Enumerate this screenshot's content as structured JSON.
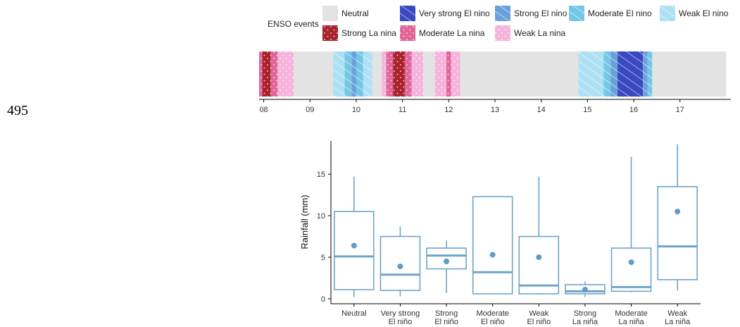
{
  "page_label": "495",
  "colors": {
    "neutral": "#e3e3e3",
    "very_strong_el_nino": "#3a48c2",
    "strong_el_nino": "#6aa1dc",
    "moderate_el_nino": "#74c6e6",
    "weak_el_nino": "#aee0f4",
    "strong_la_nina": "#a8232b",
    "moderate_la_nina": "#e0669a",
    "weak_la_nina": "#f6b4dc",
    "box": "#6ea4c9",
    "mean_dot": "#5f9cc6"
  },
  "chart_data": [
    {
      "type": "timeline",
      "legend_title": "ENSO events",
      "legend": [
        {
          "key": "neutral",
          "label": "Neutral"
        },
        {
          "key": "very_strong_el_nino",
          "label": "Very strong El nino"
        },
        {
          "key": "strong_el_nino",
          "label": "Strong El nino"
        },
        {
          "key": "moderate_el_nino",
          "label": "Moderate El nino"
        },
        {
          "key": "weak_el_nino",
          "label": "Weak El nino"
        },
        {
          "key": "strong_la_nina",
          "label": "Strong La nina"
        },
        {
          "key": "moderate_la_nina",
          "label": "Moderate La nina"
        },
        {
          "key": "weak_la_nina",
          "label": "Weak La nina"
        }
      ],
      "x_ticks": [
        "08",
        "09",
        "10",
        "11",
        "12",
        "13",
        "14",
        "15",
        "16",
        "17"
      ],
      "xlim": [
        2007.9,
        2018.1
      ],
      "segments": [
        {
          "start": 2007.9,
          "end": 2007.97,
          "cat": "moderate_la_nina"
        },
        {
          "start": 2007.97,
          "end": 2008.15,
          "cat": "strong_la_nina"
        },
        {
          "start": 2008.15,
          "end": 2008.3,
          "cat": "moderate_la_nina"
        },
        {
          "start": 2008.3,
          "end": 2008.65,
          "cat": "weak_la_nina"
        },
        {
          "start": 2008.65,
          "end": 2009.5,
          "cat": "neutral"
        },
        {
          "start": 2009.5,
          "end": 2009.75,
          "cat": "weak_el_nino"
        },
        {
          "start": 2009.75,
          "end": 2009.9,
          "cat": "moderate_el_nino"
        },
        {
          "start": 2009.9,
          "end": 2010.0,
          "cat": "strong_el_nino"
        },
        {
          "start": 2010.0,
          "end": 2010.15,
          "cat": "moderate_el_nino"
        },
        {
          "start": 2010.15,
          "end": 2010.35,
          "cat": "weak_el_nino"
        },
        {
          "start": 2010.35,
          "end": 2010.55,
          "cat": "neutral"
        },
        {
          "start": 2010.55,
          "end": 2010.65,
          "cat": "weak_la_nina"
        },
        {
          "start": 2010.65,
          "end": 2010.8,
          "cat": "moderate_la_nina"
        },
        {
          "start": 2010.8,
          "end": 2011.05,
          "cat": "strong_la_nina"
        },
        {
          "start": 2011.05,
          "end": 2011.2,
          "cat": "moderate_la_nina"
        },
        {
          "start": 2011.2,
          "end": 2011.45,
          "cat": "weak_la_nina"
        },
        {
          "start": 2011.45,
          "end": 2011.7,
          "cat": "neutral"
        },
        {
          "start": 2011.7,
          "end": 2011.95,
          "cat": "weak_la_nina"
        },
        {
          "start": 2011.95,
          "end": 2012.05,
          "cat": "moderate_la_nina"
        },
        {
          "start": 2012.05,
          "end": 2012.25,
          "cat": "weak_la_nina"
        },
        {
          "start": 2012.25,
          "end": 2014.8,
          "cat": "neutral"
        },
        {
          "start": 2014.8,
          "end": 2015.35,
          "cat": "weak_el_nino"
        },
        {
          "start": 2015.35,
          "end": 2015.5,
          "cat": "moderate_el_nino"
        },
        {
          "start": 2015.5,
          "end": 2015.65,
          "cat": "strong_el_nino"
        },
        {
          "start": 2015.65,
          "end": 2016.2,
          "cat": "very_strong_el_nino"
        },
        {
          "start": 2016.2,
          "end": 2016.3,
          "cat": "strong_el_nino"
        },
        {
          "start": 2016.3,
          "end": 2016.4,
          "cat": "moderate_el_nino"
        },
        {
          "start": 2016.4,
          "end": 2018.0,
          "cat": "neutral"
        }
      ]
    },
    {
      "type": "box",
      "ylabel": "Rainfall (mm)",
      "ylim": [
        -0.6,
        19
      ],
      "y_ticks": [
        0,
        5,
        10,
        15
      ],
      "categories": [
        [
          "Neutral"
        ],
        [
          "Very strong",
          "El niño"
        ],
        [
          "Strong",
          "El niño"
        ],
        [
          "Moderate",
          "El niño"
        ],
        [
          "Weak",
          "El niño"
        ],
        [
          "Strong",
          "La niña"
        ],
        [
          "Moderate",
          "La niña"
        ],
        [
          "Weak",
          "La niña"
        ]
      ],
      "boxes": [
        {
          "whisker_low": 0.2,
          "q1": 1.1,
          "median": 5.1,
          "q3": 10.5,
          "whisker_high": 14.7,
          "mean": 6.4
        },
        {
          "whisker_low": 0.3,
          "q1": 1.0,
          "median": 2.9,
          "q3": 7.5,
          "whisker_high": 8.7,
          "mean": 3.9
        },
        {
          "whisker_low": 0.7,
          "q1": 3.6,
          "median": 5.2,
          "q3": 6.1,
          "whisker_high": 7.0,
          "mean": 4.5
        },
        {
          "whisker_low": 0.6,
          "q1": 0.6,
          "median": 3.2,
          "q3": 12.3,
          "whisker_high": 12.3,
          "mean": 5.3
        },
        {
          "whisker_low": 0.5,
          "q1": 0.6,
          "median": 1.6,
          "q3": 7.5,
          "whisker_high": 14.7,
          "mean": 5.0
        },
        {
          "whisker_low": 0.2,
          "q1": 0.6,
          "median": 0.9,
          "q3": 1.7,
          "whisker_high": 2.1,
          "mean": 1.1
        },
        {
          "whisker_low": 0.8,
          "q1": 0.9,
          "median": 1.4,
          "q3": 6.1,
          "whisker_high": 17.1,
          "mean": 4.4
        },
        {
          "whisker_low": 1.0,
          "q1": 2.3,
          "median": 6.3,
          "q3": 13.5,
          "whisker_high": 18.6,
          "mean": 10.5
        }
      ]
    }
  ]
}
